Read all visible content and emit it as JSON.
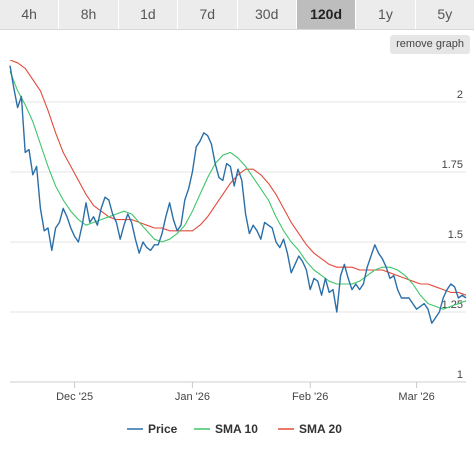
{
  "timeframes": {
    "items": [
      "4h",
      "8h",
      "1d",
      "7d",
      "30d",
      "120d",
      "1y",
      "5y"
    ],
    "selected": "120d"
  },
  "remove_graph_label": "remove graph",
  "colors": {
    "price": "#2b6fa8",
    "sma10": "#3fc56a",
    "sma20": "#e34a3a",
    "grid": "#e6e6e6",
    "axis": "#cfcfcf"
  },
  "chart_data": {
    "type": "line",
    "x_unit": "date",
    "x_range": [
      "2025-11-14",
      "2026-03-14"
    ],
    "ylim": [
      1.0,
      2.15
    ],
    "y_ticks": [
      1,
      1.25,
      1.5,
      1.75,
      2
    ],
    "y_tick_labels": [
      "1",
      "1.25",
      "1.5",
      "1.75",
      "2"
    ],
    "x_ticks": [
      "2025-12-01",
      "2026-01-01",
      "2026-02-01",
      "2026-03-01"
    ],
    "x_tick_labels": [
      "Dec '25",
      "Jan '26",
      "Feb '26",
      "Mar '26"
    ],
    "grid": true,
    "legend_position": "bottom",
    "series": [
      {
        "name": "Price",
        "color_key": "price",
        "points": [
          [
            "2025-11-14",
            2.13
          ],
          [
            "2025-11-15",
            2.05
          ],
          [
            "2025-11-16",
            1.98
          ],
          [
            "2025-11-17",
            2.02
          ],
          [
            "2025-11-18",
            1.82
          ],
          [
            "2025-11-19",
            1.83
          ],
          [
            "2025-11-20",
            1.74
          ],
          [
            "2025-11-21",
            1.77
          ],
          [
            "2025-11-22",
            1.62
          ],
          [
            "2025-11-23",
            1.54
          ],
          [
            "2025-11-24",
            1.55
          ],
          [
            "2025-11-25",
            1.47
          ],
          [
            "2025-11-26",
            1.55
          ],
          [
            "2025-11-27",
            1.57
          ],
          [
            "2025-11-28",
            1.62
          ],
          [
            "2025-11-29",
            1.59
          ],
          [
            "2025-11-30",
            1.55
          ],
          [
            "2025-12-01",
            1.52
          ],
          [
            "2025-12-02",
            1.5
          ],
          [
            "2025-12-03",
            1.56
          ],
          [
            "2025-12-04",
            1.64
          ],
          [
            "2025-12-05",
            1.57
          ],
          [
            "2025-12-06",
            1.59
          ],
          [
            "2025-12-07",
            1.56
          ],
          [
            "2025-12-08",
            1.62
          ],
          [
            "2025-12-09",
            1.66
          ],
          [
            "2025-12-10",
            1.65
          ],
          [
            "2025-12-11",
            1.6
          ],
          [
            "2025-12-12",
            1.57
          ],
          [
            "2025-12-13",
            1.51
          ],
          [
            "2025-12-14",
            1.56
          ],
          [
            "2025-12-15",
            1.6
          ],
          [
            "2025-12-16",
            1.57
          ],
          [
            "2025-12-17",
            1.51
          ],
          [
            "2025-12-18",
            1.46
          ],
          [
            "2025-12-19",
            1.5
          ],
          [
            "2025-12-20",
            1.48
          ],
          [
            "2025-12-21",
            1.47
          ],
          [
            "2025-12-22",
            1.49
          ],
          [
            "2025-12-23",
            1.49
          ],
          [
            "2025-12-24",
            1.53
          ],
          [
            "2025-12-25",
            1.59
          ],
          [
            "2025-12-26",
            1.64
          ],
          [
            "2025-12-27",
            1.58
          ],
          [
            "2025-12-28",
            1.54
          ],
          [
            "2025-12-29",
            1.56
          ],
          [
            "2025-12-30",
            1.65
          ],
          [
            "2025-12-31",
            1.69
          ],
          [
            "2026-01-01",
            1.75
          ],
          [
            "2026-01-02",
            1.84
          ],
          [
            "2026-01-03",
            1.86
          ],
          [
            "2026-01-04",
            1.89
          ],
          [
            "2026-01-05",
            1.88
          ],
          [
            "2026-01-06",
            1.85
          ],
          [
            "2026-01-07",
            1.78
          ],
          [
            "2026-01-08",
            1.73
          ],
          [
            "2026-01-09",
            1.72
          ],
          [
            "2026-01-10",
            1.78
          ],
          [
            "2026-01-11",
            1.77
          ],
          [
            "2026-01-12",
            1.7
          ],
          [
            "2026-01-13",
            1.76
          ],
          [
            "2026-01-14",
            1.72
          ],
          [
            "2026-01-15",
            1.6
          ],
          [
            "2026-01-16",
            1.53
          ],
          [
            "2026-01-17",
            1.56
          ],
          [
            "2026-01-18",
            1.54
          ],
          [
            "2026-01-19",
            1.51
          ],
          [
            "2026-01-20",
            1.57
          ],
          [
            "2026-01-21",
            1.56
          ],
          [
            "2026-01-22",
            1.55
          ],
          [
            "2026-01-23",
            1.5
          ],
          [
            "2026-01-24",
            1.48
          ],
          [
            "2026-01-25",
            1.51
          ],
          [
            "2026-01-26",
            1.46
          ],
          [
            "2026-01-27",
            1.39
          ],
          [
            "2026-01-28",
            1.42
          ],
          [
            "2026-01-29",
            1.45
          ],
          [
            "2026-01-30",
            1.43
          ],
          [
            "2026-01-31",
            1.4
          ],
          [
            "2026-02-01",
            1.33
          ],
          [
            "2026-02-02",
            1.37
          ],
          [
            "2026-02-03",
            1.36
          ],
          [
            "2026-02-04",
            1.31
          ],
          [
            "2026-02-05",
            1.37
          ],
          [
            "2026-02-06",
            1.32
          ],
          [
            "2026-02-07",
            1.33
          ],
          [
            "2026-02-08",
            1.25
          ],
          [
            "2026-02-09",
            1.38
          ],
          [
            "2026-02-10",
            1.42
          ],
          [
            "2026-02-11",
            1.37
          ],
          [
            "2026-02-12",
            1.33
          ],
          [
            "2026-02-13",
            1.35
          ],
          [
            "2026-02-14",
            1.33
          ],
          [
            "2026-02-15",
            1.35
          ],
          [
            "2026-02-16",
            1.41
          ],
          [
            "2026-02-17",
            1.45
          ],
          [
            "2026-02-18",
            1.49
          ],
          [
            "2026-02-19",
            1.46
          ],
          [
            "2026-02-20",
            1.44
          ],
          [
            "2026-02-21",
            1.41
          ],
          [
            "2026-02-22",
            1.37
          ],
          [
            "2026-02-23",
            1.38
          ],
          [
            "2026-02-24",
            1.33
          ],
          [
            "2026-02-25",
            1.3
          ],
          [
            "2026-02-26",
            1.3
          ],
          [
            "2026-02-27",
            1.3
          ],
          [
            "2026-02-28",
            1.28
          ],
          [
            "2026-03-01",
            1.26
          ],
          [
            "2026-03-02",
            1.27
          ],
          [
            "2026-03-03",
            1.28
          ],
          [
            "2026-03-04",
            1.26
          ],
          [
            "2026-03-05",
            1.21
          ],
          [
            "2026-03-06",
            1.23
          ],
          [
            "2026-03-07",
            1.25
          ],
          [
            "2026-03-08",
            1.3
          ],
          [
            "2026-03-09",
            1.33
          ],
          [
            "2026-03-10",
            1.35
          ],
          [
            "2026-03-11",
            1.34
          ],
          [
            "2026-03-12",
            1.3
          ],
          [
            "2026-03-13",
            1.31
          ],
          [
            "2026-03-14",
            1.3
          ]
        ]
      },
      {
        "name": "SMA 10",
        "color_key": "sma10",
        "points": [
          [
            "2025-11-14",
            2.11
          ],
          [
            "2025-11-16",
            2.04
          ],
          [
            "2025-11-18",
            1.99
          ],
          [
            "2025-11-20",
            1.93
          ],
          [
            "2025-11-22",
            1.85
          ],
          [
            "2025-11-24",
            1.77
          ],
          [
            "2025-11-26",
            1.7
          ],
          [
            "2025-11-28",
            1.65
          ],
          [
            "2025-11-30",
            1.61
          ],
          [
            "2025-12-02",
            1.58
          ],
          [
            "2025-12-04",
            1.56
          ],
          [
            "2025-12-06",
            1.57
          ],
          [
            "2025-12-08",
            1.58
          ],
          [
            "2025-12-10",
            1.59
          ],
          [
            "2025-12-12",
            1.6
          ],
          [
            "2025-12-14",
            1.61
          ],
          [
            "2025-12-16",
            1.6
          ],
          [
            "2025-12-18",
            1.57
          ],
          [
            "2025-12-20",
            1.54
          ],
          [
            "2025-12-22",
            1.51
          ],
          [
            "2025-12-24",
            1.5
          ],
          [
            "2025-12-26",
            1.51
          ],
          [
            "2025-12-28",
            1.53
          ],
          [
            "2025-12-30",
            1.56
          ],
          [
            "2026-01-01",
            1.61
          ],
          [
            "2026-01-03",
            1.67
          ],
          [
            "2026-01-05",
            1.73
          ],
          [
            "2026-01-07",
            1.78
          ],
          [
            "2026-01-09",
            1.81
          ],
          [
            "2026-01-11",
            1.82
          ],
          [
            "2026-01-13",
            1.8
          ],
          [
            "2026-01-15",
            1.77
          ],
          [
            "2026-01-17",
            1.73
          ],
          [
            "2026-01-19",
            1.69
          ],
          [
            "2026-01-21",
            1.65
          ],
          [
            "2026-01-23",
            1.59
          ],
          [
            "2026-01-25",
            1.54
          ],
          [
            "2026-01-27",
            1.5
          ],
          [
            "2026-01-29",
            1.47
          ],
          [
            "2026-01-31",
            1.43
          ],
          [
            "2026-02-02",
            1.4
          ],
          [
            "2026-02-04",
            1.38
          ],
          [
            "2026-02-06",
            1.36
          ],
          [
            "2026-02-08",
            1.35
          ],
          [
            "2026-02-10",
            1.35
          ],
          [
            "2026-02-12",
            1.35
          ],
          [
            "2026-02-14",
            1.36
          ],
          [
            "2026-02-16",
            1.38
          ],
          [
            "2026-02-18",
            1.4
          ],
          [
            "2026-02-20",
            1.41
          ],
          [
            "2026-02-22",
            1.41
          ],
          [
            "2026-02-24",
            1.4
          ],
          [
            "2026-02-26",
            1.38
          ],
          [
            "2026-02-28",
            1.35
          ],
          [
            "2026-03-02",
            1.31
          ],
          [
            "2026-03-04",
            1.28
          ],
          [
            "2026-03-06",
            1.27
          ],
          [
            "2026-03-08",
            1.26
          ],
          [
            "2026-03-10",
            1.27
          ],
          [
            "2026-03-12",
            1.28
          ],
          [
            "2026-03-14",
            1.29
          ]
        ]
      },
      {
        "name": "SMA 20",
        "color_key": "sma20",
        "points": [
          [
            "2025-11-14",
            2.15
          ],
          [
            "2025-11-16",
            2.14
          ],
          [
            "2025-11-18",
            2.12
          ],
          [
            "2025-11-20",
            2.08
          ],
          [
            "2025-11-22",
            2.04
          ],
          [
            "2025-11-24",
            1.97
          ],
          [
            "2025-11-26",
            1.89
          ],
          [
            "2025-11-28",
            1.82
          ],
          [
            "2025-11-30",
            1.77
          ],
          [
            "2025-12-02",
            1.72
          ],
          [
            "2025-12-04",
            1.67
          ],
          [
            "2025-12-06",
            1.63
          ],
          [
            "2025-12-08",
            1.61
          ],
          [
            "2025-12-10",
            1.59
          ],
          [
            "2025-12-12",
            1.58
          ],
          [
            "2025-12-14",
            1.58
          ],
          [
            "2025-12-16",
            1.58
          ],
          [
            "2025-12-18",
            1.57
          ],
          [
            "2025-12-20",
            1.56
          ],
          [
            "2025-12-22",
            1.55
          ],
          [
            "2025-12-24",
            1.55
          ],
          [
            "2025-12-26",
            1.54
          ],
          [
            "2025-12-28",
            1.54
          ],
          [
            "2025-12-30",
            1.54
          ],
          [
            "2026-01-01",
            1.54
          ],
          [
            "2026-01-03",
            1.56
          ],
          [
            "2026-01-05",
            1.59
          ],
          [
            "2026-01-07",
            1.63
          ],
          [
            "2026-01-09",
            1.67
          ],
          [
            "2026-01-11",
            1.71
          ],
          [
            "2026-01-13",
            1.74
          ],
          [
            "2026-01-15",
            1.76
          ],
          [
            "2026-01-17",
            1.76
          ],
          [
            "2026-01-19",
            1.74
          ],
          [
            "2026-01-21",
            1.71
          ],
          [
            "2026-01-23",
            1.67
          ],
          [
            "2026-01-25",
            1.62
          ],
          [
            "2026-01-27",
            1.57
          ],
          [
            "2026-01-29",
            1.53
          ],
          [
            "2026-01-31",
            1.49
          ],
          [
            "2026-02-02",
            1.46
          ],
          [
            "2026-02-04",
            1.44
          ],
          [
            "2026-02-06",
            1.42
          ],
          [
            "2026-02-08",
            1.41
          ],
          [
            "2026-02-10",
            1.41
          ],
          [
            "2026-02-12",
            1.41
          ],
          [
            "2026-02-14",
            1.4
          ],
          [
            "2026-02-16",
            1.4
          ],
          [
            "2026-02-18",
            1.4
          ],
          [
            "2026-02-20",
            1.4
          ],
          [
            "2026-02-22",
            1.39
          ],
          [
            "2026-02-24",
            1.38
          ],
          [
            "2026-02-26",
            1.37
          ],
          [
            "2026-02-28",
            1.36
          ],
          [
            "2026-03-02",
            1.35
          ],
          [
            "2026-03-04",
            1.35
          ],
          [
            "2026-03-06",
            1.34
          ],
          [
            "2026-03-08",
            1.33
          ],
          [
            "2026-03-10",
            1.32
          ],
          [
            "2026-03-12",
            1.32
          ],
          [
            "2026-03-14",
            1.31
          ]
        ]
      }
    ]
  }
}
